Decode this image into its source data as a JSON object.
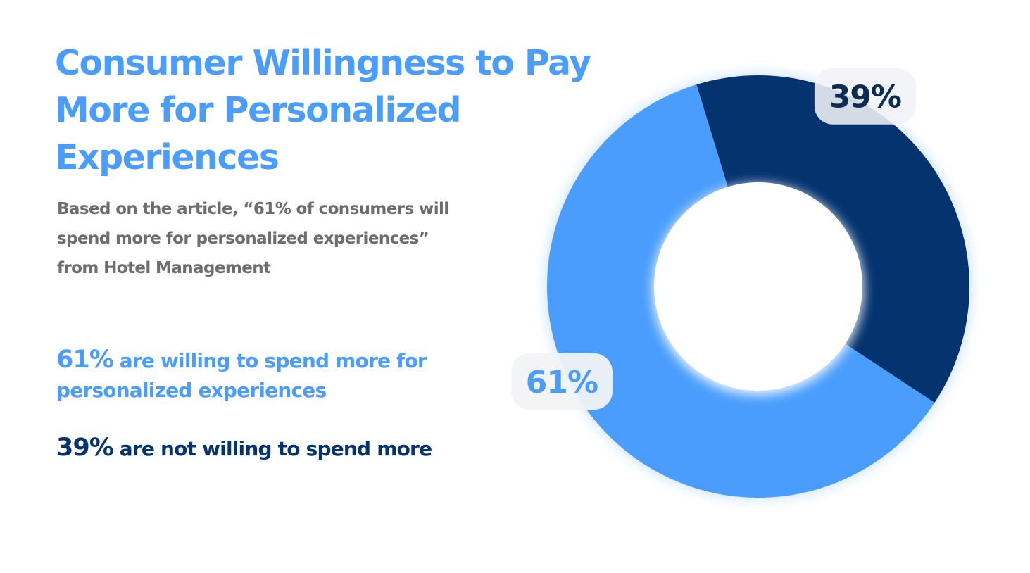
{
  "title": "Consumer Willingness to Pay More for Personalized Experiences",
  "subtitle": "Based on the article, “61% of consumers will spend more for personalized experiences”  from Hotel Management",
  "legend": [
    {
      "value_text": "61%",
      "text": " are willing to spend more for personalized experiences"
    },
    {
      "value_text": "39%",
      "text": " are not willing to spend more"
    }
  ],
  "colors": {
    "light_blue": "#4a9dfc",
    "dark_blue": "#05336f",
    "subtitle_gray": "#6d6d6d"
  },
  "chart_data": {
    "type": "pie",
    "donut": true,
    "categories": [
      "Willing to spend more",
      "Not willing to spend more"
    ],
    "values": [
      61,
      39
    ],
    "labels": [
      "61%",
      "39%"
    ],
    "colors": [
      "#4a9dfc",
      "#05336f"
    ],
    "start_angle_deg": -17
  }
}
